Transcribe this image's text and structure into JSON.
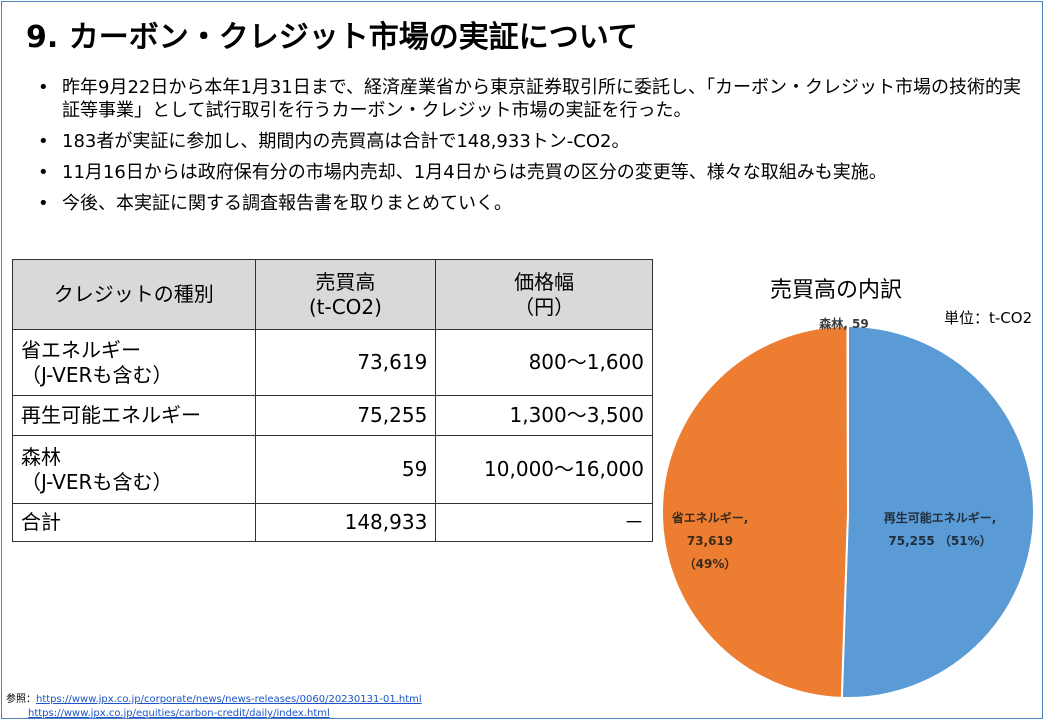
{
  "title": "9. カーボン・クレジット市場の実証について",
  "bullets": [
    "昨年9月22日から本年1月31日まで、経済産業省から東京証券取引所に委託し、「カーボン・クレジット市場の技術的実証等事業」として試行取引を行うカーボン・クレジット市場の実証を行った。",
    "183者が実証に参加し、期間内の売買高は合計で148,933トン-CO2。",
    "11月16日からは政府保有分の市場内売却、1月4日からは売買の区分の変更等、様々な取組みも実施。",
    "今後、本実証に関する調査報告書を取りまとめていく。"
  ],
  "table": {
    "headers": {
      "type": "クレジットの種別",
      "volume_line1": "売買高",
      "volume_line2": "(t-CO2)",
      "price_line1": "価格幅",
      "price_line2": "（円）"
    },
    "rows": [
      {
        "name_line1": "省エネルギー",
        "name_line2": "（J-VERも含む）",
        "volume": "73,619",
        "price": "800～1,600"
      },
      {
        "name_line1": "再生可能エネルギー",
        "name_line2": "",
        "volume": "75,255",
        "price": "1,300～3,500"
      },
      {
        "name_line1": "森林",
        "name_line2": "（J-VERも含む）",
        "volume": "59",
        "price": "10,000～16,000"
      },
      {
        "name_line1": "合計",
        "name_line2": "",
        "volume": "148,933",
        "price": "－"
      }
    ]
  },
  "chart_title": "売買高の内訳",
  "chart_unit": "単位：t-CO2",
  "chart_data": {
    "type": "pie",
    "title": "売買高の内訳",
    "unit": "単位：t-CO2",
    "slices": [
      {
        "label": "再生可能エネルギー,",
        "value": 75255,
        "value_text": "75,255",
        "percent_text": "（51%）",
        "color": "#5b9bd5"
      },
      {
        "label": "省エネルギー,",
        "value": 73619,
        "value_text": "73,619",
        "percent_text": "（49%）",
        "color": "#ed7d31"
      },
      {
        "label": "森林,",
        "value": 59,
        "value_text": "59",
        "percent_text": "",
        "color": "#a5a5a5"
      }
    ]
  },
  "references": {
    "prefix": "参照：",
    "link1": "https://www.jpx.co.jp/corporate/news/news-releases/0060/20230131-01.html",
    "link2": "https://www.jpx.co.jp/equities/carbon-credit/daily/index.html"
  }
}
